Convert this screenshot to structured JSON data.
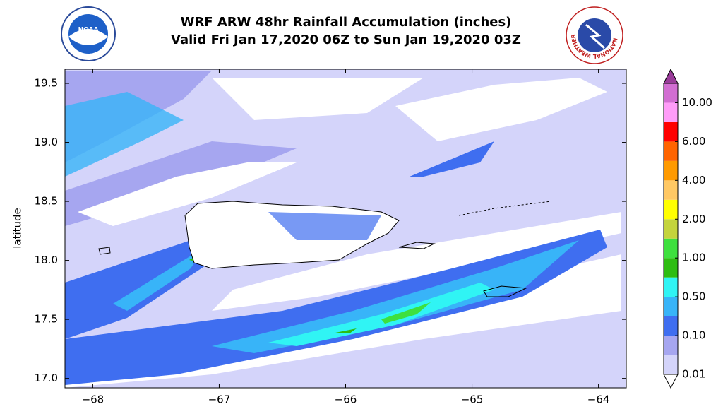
{
  "header": {
    "title": [
      "WRF ARW 48hr Rainfall Accumulation (inches)",
      "Valid Fri Jan 17,2020 06Z to Sun Jan 19,2020 03Z"
    ],
    "left_logo": "NOAA",
    "right_logo": "NATIONAL WEATHER SERVICE"
  },
  "map": {
    "ylabel": "latitude",
    "xlim": [
      -68.22,
      -63.78
    ],
    "ylim": [
      16.92,
      19.62
    ],
    "xticks": [
      {
        "value": -68,
        "label": "−68"
      },
      {
        "value": -67,
        "label": "−67"
      },
      {
        "value": -66,
        "label": "−66"
      },
      {
        "value": -65,
        "label": "−65"
      },
      {
        "value": -64,
        "label": "−64"
      }
    ],
    "yticks": [
      {
        "value": 17.0,
        "label": "17.0"
      },
      {
        "value": 17.5,
        "label": "17.5"
      },
      {
        "value": 18.0,
        "label": "18.0"
      },
      {
        "value": 18.5,
        "label": "18.5"
      },
      {
        "value": 19.0,
        "label": "19.0"
      },
      {
        "value": 19.5,
        "label": "19.5"
      }
    ]
  },
  "colorbar": {
    "levels": [
      {
        "value": 0.01,
        "label": "0.01"
      },
      {
        "value": 0.1,
        "label": "0.10"
      },
      {
        "value": 0.5,
        "label": "0.50"
      },
      {
        "value": 1,
        "label": "1.00"
      },
      {
        "value": 2,
        "label": "2.00"
      },
      {
        "value": 4,
        "label": "4.00"
      },
      {
        "value": 6,
        "label": "6.00"
      },
      {
        "value": 10,
        "label": "10.00"
      }
    ],
    "colors": [
      "#d4d4fa",
      "#a6a6f0",
      "#3f6ef0",
      "#38b4f8",
      "#30f4f4",
      "#2ebd12",
      "#3ee03e",
      "#c4d43c",
      "#ffff00",
      "#ffc864",
      "#ff9a00",
      "#ff6400",
      "#ff0000",
      "#ff9cf8",
      "#d26ed2"
    ],
    "under_color": "#ffffff",
    "over_color": "#9a3c9a"
  }
}
